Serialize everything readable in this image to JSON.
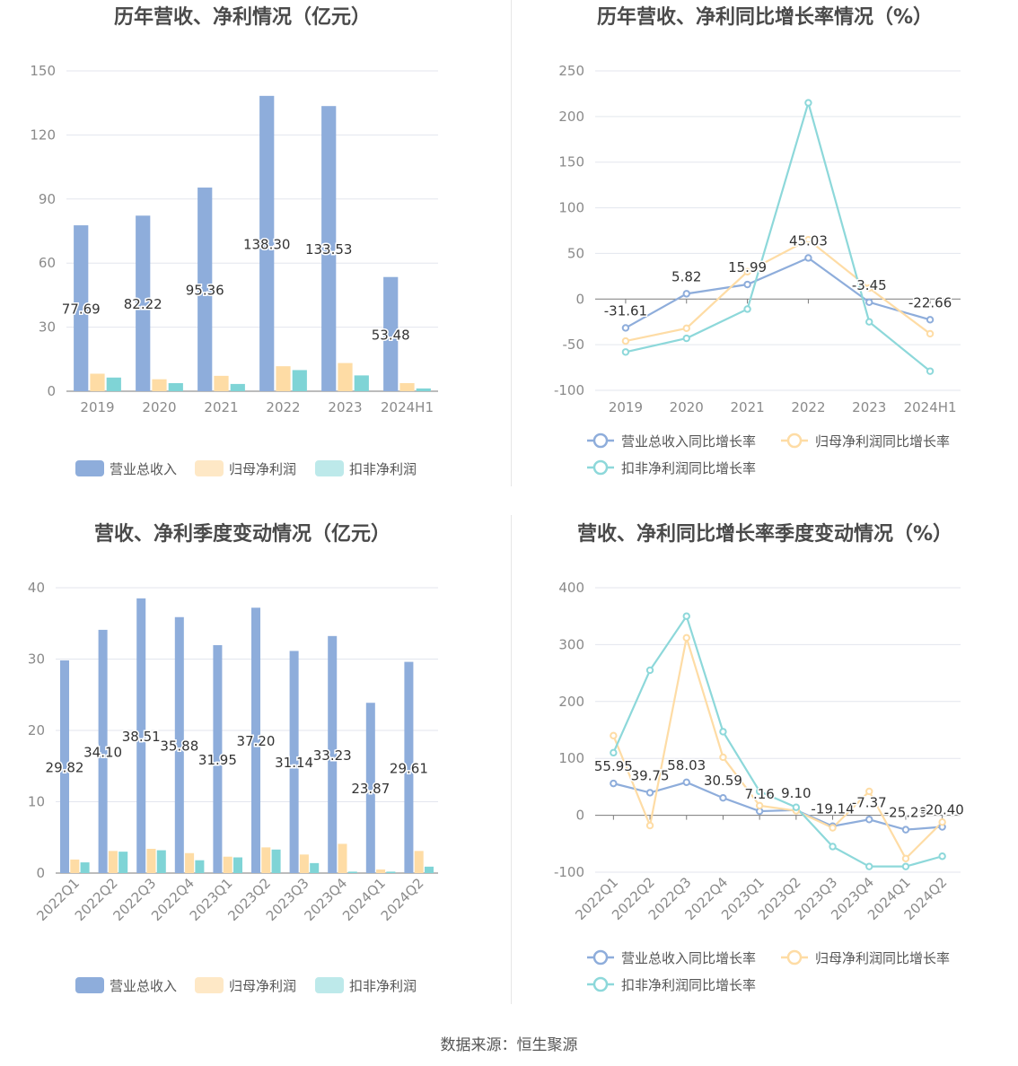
{
  "source": "数据来源：恒生聚源",
  "colors": {
    "revenue": "#8eaddb",
    "net_profit": "#fedca5",
    "deducted": "#7fd4d6",
    "revenue_line": "#8eaddb",
    "np_line": "#fedca5",
    "ded_line": "#8dd8da",
    "legend_ded_bar": "#bde9ea",
    "legend_np_bar": "#fee8c6"
  },
  "chart_data": [
    {
      "id": "annual-bars",
      "type": "bar",
      "title": "历年营收、净利情况（亿元）",
      "categories": [
        "2019",
        "2020",
        "2021",
        "2022",
        "2023",
        "2024H1"
      ],
      "ylim": [
        0,
        150
      ],
      "yticks": [
        0,
        30,
        60,
        90,
        120,
        150
      ],
      "grid": true,
      "legend_position": "bottom",
      "labelled_series": 0,
      "series": [
        {
          "name": "营业总收入",
          "values": [
            77.69,
            82.22,
            95.36,
            138.3,
            133.53,
            53.48
          ],
          "labels": [
            "77.69",
            "82.22",
            "95.36",
            "138.30",
            "133.53",
            "53.48"
          ]
        },
        {
          "name": "归母净利润",
          "values": [
            8.2,
            5.6,
            7.2,
            11.7,
            13.2,
            3.8
          ]
        },
        {
          "name": "扣非净利润",
          "values": [
            6.4,
            3.8,
            3.4,
            9.9,
            7.4,
            1.3
          ]
        }
      ]
    },
    {
      "id": "annual-growth",
      "type": "line",
      "title": "历年营收、净利同比增长率情况（%）",
      "categories": [
        "2019",
        "2020",
        "2021",
        "2022",
        "2023",
        "2024H1"
      ],
      "ylim": [
        -100,
        250
      ],
      "yticks": [
        -100,
        -50,
        0,
        50,
        100,
        150,
        200,
        250
      ],
      "grid": true,
      "legend_position": "bottom",
      "labelled_series": 0,
      "series": [
        {
          "name": "营业总收入同比增长率",
          "values": [
            -31.61,
            5.82,
            15.99,
            45.03,
            -3.45,
            -22.66
          ],
          "labels": [
            "-31.61",
            "5.82",
            "15.99",
            "45.03",
            "-3.45",
            "-22.66"
          ]
        },
        {
          "name": "归母净利润同比增长率",
          "values": [
            -46,
            -32,
            30,
            65,
            12,
            -38
          ]
        },
        {
          "name": "扣非净利润同比增长率",
          "values": [
            -58,
            -43,
            -11,
            215,
            -25,
            -79
          ]
        }
      ]
    },
    {
      "id": "quarterly-bars",
      "type": "bar",
      "title": "营收、净利季度变动情况（亿元）",
      "categories": [
        "2022Q1",
        "2022Q2",
        "2022Q3",
        "2022Q4",
        "2023Q1",
        "2023Q2",
        "2023Q3",
        "2023Q4",
        "2024Q1",
        "2024Q2"
      ],
      "ylim": [
        0,
        40
      ],
      "yticks": [
        0,
        10,
        20,
        30,
        40
      ],
      "grid": true,
      "legend_position": "bottom",
      "labelled_series": 0,
      "series": [
        {
          "name": "营业总收入",
          "values": [
            29.82,
            34.1,
            38.51,
            35.88,
            31.95,
            37.2,
            31.14,
            33.23,
            23.87,
            29.61
          ],
          "labels": [
            "29.82",
            "34.10",
            "38.51",
            "35.88",
            "31.95",
            "37.20",
            "31.14",
            "33.23",
            "23.87",
            "29.61"
          ]
        },
        {
          "name": "归母净利润",
          "values": [
            1.9,
            3.1,
            3.4,
            2.8,
            2.3,
            3.6,
            2.6,
            4.1,
            0.5,
            3.1
          ]
        },
        {
          "name": "扣非净利润",
          "values": [
            1.5,
            3.0,
            3.2,
            1.8,
            2.2,
            3.3,
            1.4,
            0.2,
            0.2,
            0.9
          ]
        }
      ]
    },
    {
      "id": "quarterly-growth",
      "type": "line",
      "title": "营收、净利同比增长率季度变动情况（%）",
      "categories": [
        "2022Q1",
        "2022Q2",
        "2022Q3",
        "2022Q4",
        "2023Q1",
        "2023Q2",
        "2023Q3",
        "2023Q4",
        "2024Q1",
        "2024Q2"
      ],
      "ylim": [
        -100,
        400
      ],
      "yticks": [
        -100,
        0,
        100,
        200,
        300,
        400
      ],
      "grid": true,
      "legend_position": "bottom",
      "labelled_series": 0,
      "series": [
        {
          "name": "营业总收入同比增长率",
          "values": [
            55.95,
            39.75,
            58.03,
            30.59,
            7.16,
            9.1,
            -19.14,
            -7.37,
            -25.29,
            -20.4
          ],
          "labels": [
            "55.95",
            "39.75",
            "58.03",
            "30.59",
            "7.16",
            "9.10",
            "-19.14",
            "-7.37",
            "-25.29",
            "-20.40"
          ]
        },
        {
          "name": "归母净利润同比增长率",
          "values": [
            140,
            -18,
            312,
            102,
            17,
            8,
            -22,
            42,
            -76,
            -12
          ]
        },
        {
          "name": "扣非净利润同比增长率",
          "values": [
            110,
            255,
            350,
            147,
            42,
            14,
            -55,
            -90,
            -90,
            -72
          ]
        }
      ]
    }
  ]
}
